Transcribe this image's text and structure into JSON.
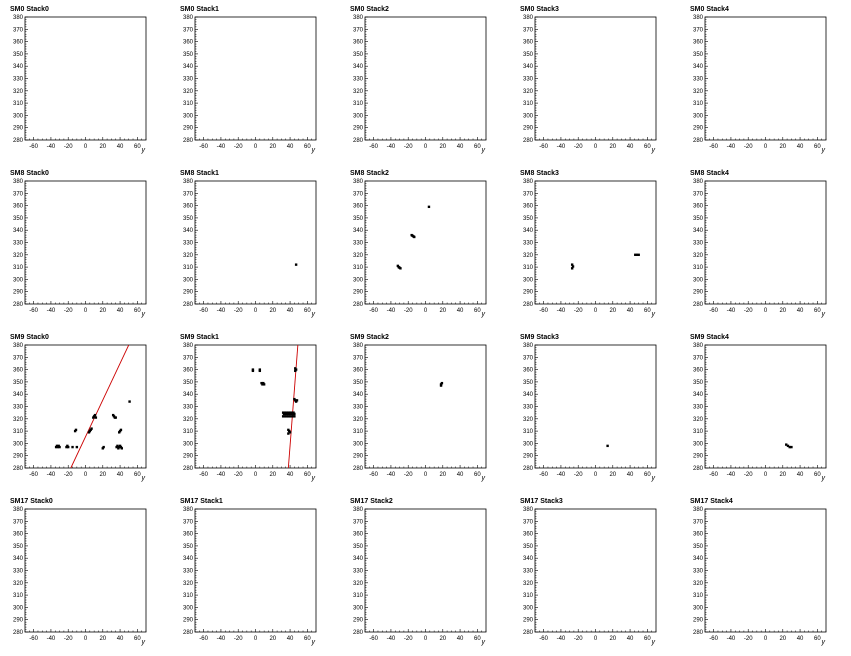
{
  "chart_data": [
    {
      "type": "scatter",
      "title": "SM0 Stack0",
      "xlabel": "y",
      "ylabel": "",
      "xlim": [
        -70,
        70
      ],
      "ylim": [
        280,
        380
      ],
      "xticks": [
        -60,
        -40,
        -20,
        0,
        20,
        40,
        60
      ],
      "yticks": [
        280,
        290,
        300,
        310,
        320,
        330,
        340,
        350,
        360,
        370,
        380
      ],
      "points": [],
      "lines": []
    },
    {
      "type": "scatter",
      "title": "SM0 Stack1",
      "xlabel": "y",
      "ylabel": "",
      "xlim": [
        -70,
        70
      ],
      "ylim": [
        280,
        380
      ],
      "xticks": [
        -60,
        -40,
        -20,
        0,
        20,
        40,
        60
      ],
      "yticks": [
        280,
        290,
        300,
        310,
        320,
        330,
        340,
        350,
        360,
        370,
        380
      ],
      "points": [],
      "lines": []
    },
    {
      "type": "scatter",
      "title": "SM0 Stack2",
      "xlabel": "y",
      "ylabel": "",
      "xlim": [
        -70,
        70
      ],
      "ylim": [
        280,
        380
      ],
      "xticks": [
        -60,
        -40,
        -20,
        0,
        20,
        40,
        60
      ],
      "yticks": [
        280,
        290,
        300,
        310,
        320,
        330,
        340,
        350,
        360,
        370,
        380
      ],
      "points": [],
      "lines": []
    },
    {
      "type": "scatter",
      "title": "SM0 Stack3",
      "xlabel": "y",
      "ylabel": "",
      "xlim": [
        -70,
        70
      ],
      "ylim": [
        280,
        380
      ],
      "xticks": [
        -60,
        -40,
        -20,
        0,
        20,
        40,
        60
      ],
      "yticks": [
        280,
        290,
        300,
        310,
        320,
        330,
        340,
        350,
        360,
        370,
        380
      ],
      "points": [],
      "lines": []
    },
    {
      "type": "scatter",
      "title": "SM0 Stack4",
      "xlabel": "y",
      "ylabel": "",
      "xlim": [
        -70,
        70
      ],
      "ylim": [
        280,
        380
      ],
      "xticks": [
        -60,
        -40,
        -20,
        0,
        20,
        40,
        60
      ],
      "yticks": [
        280,
        290,
        300,
        310,
        320,
        330,
        340,
        350,
        360,
        370,
        380
      ],
      "points": [],
      "lines": []
    },
    {
      "type": "scatter",
      "title": "SM8 Stack0",
      "xlabel": "y",
      "ylabel": "",
      "xlim": [
        -70,
        70
      ],
      "ylim": [
        280,
        380
      ],
      "xticks": [
        -60,
        -40,
        -20,
        0,
        20,
        40,
        60
      ],
      "yticks": [
        280,
        290,
        300,
        310,
        320,
        330,
        340,
        350,
        360,
        370,
        380
      ],
      "points": [],
      "lines": []
    },
    {
      "type": "scatter",
      "title": "SM8 Stack1",
      "xlabel": "y",
      "ylabel": "",
      "xlim": [
        -70,
        70
      ],
      "ylim": [
        280,
        380
      ],
      "xticks": [
        -60,
        -40,
        -20,
        0,
        20,
        40,
        60
      ],
      "yticks": [
        280,
        290,
        300,
        310,
        320,
        330,
        340,
        350,
        360,
        370,
        380
      ],
      "points": [
        [
          47,
          312
        ]
      ],
      "lines": []
    },
    {
      "type": "scatter",
      "title": "SM8 Stack2",
      "xlabel": "y",
      "ylabel": "",
      "xlim": [
        -70,
        70
      ],
      "ylim": [
        280,
        380
      ],
      "xticks": [
        -60,
        -40,
        -20,
        0,
        20,
        40,
        60
      ],
      "yticks": [
        280,
        290,
        300,
        310,
        320,
        330,
        340,
        350,
        360,
        370,
        380
      ],
      "points": [
        [
          4,
          359
        ],
        [
          -16,
          336
        ],
        [
          -15,
          335.5
        ],
        [
          -14,
          335
        ],
        [
          -13,
          334.5
        ],
        [
          -32,
          311
        ],
        [
          -31,
          310
        ],
        [
          -30,
          309.5
        ],
        [
          -29,
          309
        ]
      ],
      "lines": []
    },
    {
      "type": "scatter",
      "title": "SM8 Stack3",
      "xlabel": "y",
      "ylabel": "",
      "xlim": [
        -70,
        70
      ],
      "ylim": [
        280,
        380
      ],
      "xticks": [
        -60,
        -40,
        -20,
        0,
        20,
        40,
        60
      ],
      "yticks": [
        280,
        290,
        300,
        310,
        320,
        330,
        340,
        350,
        360,
        370,
        380
      ],
      "points": [
        [
          -27,
          312
        ],
        [
          -26,
          310.5
        ],
        [
          -27,
          309
        ],
        [
          46,
          320
        ],
        [
          48,
          320
        ],
        [
          50,
          320
        ]
      ],
      "lines": []
    },
    {
      "type": "scatter",
      "title": "SM8 Stack4",
      "xlabel": "y",
      "ylabel": "",
      "xlim": [
        -70,
        70
      ],
      "ylim": [
        280,
        380
      ],
      "xticks": [
        -60,
        -40,
        -20,
        0,
        20,
        40,
        60
      ],
      "yticks": [
        280,
        290,
        300,
        310,
        320,
        330,
        340,
        350,
        360,
        370,
        380
      ],
      "points": [],
      "lines": []
    },
    {
      "type": "scatter",
      "title": "SM9 Stack0",
      "xlabel": "y",
      "ylabel": "",
      "xlim": [
        -70,
        70
      ],
      "ylim": [
        280,
        380
      ],
      "xticks": [
        -60,
        -40,
        -20,
        0,
        20,
        40,
        60
      ],
      "yticks": [
        280,
        290,
        300,
        310,
        320,
        330,
        340,
        350,
        360,
        370,
        380
      ],
      "points": [
        [
          -34,
          297
        ],
        [
          -32,
          297
        ],
        [
          -30,
          297
        ],
        [
          -33,
          298
        ],
        [
          -31,
          298
        ],
        [
          -22,
          297
        ],
        [
          -20,
          297
        ],
        [
          -21,
          298
        ],
        [
          -15,
          297
        ],
        [
          -10,
          297
        ],
        [
          -12,
          310
        ],
        [
          -11,
          311
        ],
        [
          4,
          309
        ],
        [
          5,
          310
        ],
        [
          6,
          311
        ],
        [
          7,
          312
        ],
        [
          9,
          321
        ],
        [
          10,
          322
        ],
        [
          11,
          323
        ],
        [
          12,
          321
        ],
        [
          20,
          296
        ],
        [
          21,
          297
        ],
        [
          32,
          323
        ],
        [
          33,
          322
        ],
        [
          34,
          321
        ],
        [
          35,
          321
        ],
        [
          36,
          297
        ],
        [
          37,
          298
        ],
        [
          38,
          296
        ],
        [
          39,
          297
        ],
        [
          40,
          298
        ],
        [
          41,
          297
        ],
        [
          42,
          296
        ],
        [
          39,
          309
        ],
        [
          40,
          310
        ],
        [
          41,
          311
        ],
        [
          51,
          334
        ]
      ],
      "lines": [
        [
          [
            -17,
            280
          ],
          [
            50,
            380
          ]
        ]
      ]
    },
    {
      "type": "scatter",
      "title": "SM9 Stack1",
      "xlabel": "y",
      "ylabel": "",
      "xlim": [
        -70,
        70
      ],
      "ylim": [
        280,
        380
      ],
      "xticks": [
        -60,
        -40,
        -20,
        0,
        20,
        40,
        60
      ],
      "yticks": [
        280,
        290,
        300,
        310,
        320,
        330,
        340,
        350,
        360,
        370,
        380
      ],
      "points": [
        [
          -3,
          360
        ],
        [
          -3,
          359
        ],
        [
          5,
          360
        ],
        [
          5,
          359
        ],
        [
          7,
          349
        ],
        [
          8,
          348
        ],
        [
          9,
          349
        ],
        [
          10,
          348
        ],
        [
          32,
          325
        ],
        [
          33,
          324
        ],
        [
          34,
          325
        ],
        [
          35,
          324
        ],
        [
          36,
          325
        ],
        [
          37,
          324
        ],
        [
          38,
          325
        ],
        [
          39,
          324
        ],
        [
          40,
          325
        ],
        [
          41,
          324
        ],
        [
          42,
          325
        ],
        [
          43,
          324
        ],
        [
          44,
          325
        ],
        [
          45,
          324
        ],
        [
          32,
          322
        ],
        [
          34,
          322
        ],
        [
          36,
          322
        ],
        [
          38,
          322
        ],
        [
          40,
          322
        ],
        [
          42,
          322
        ],
        [
          44,
          322
        ],
        [
          45,
          322
        ],
        [
          38,
          311
        ],
        [
          39,
          310
        ],
        [
          40,
          309
        ],
        [
          38,
          308
        ],
        [
          45,
          336
        ],
        [
          46,
          335
        ],
        [
          47,
          334
        ],
        [
          48,
          335
        ],
        [
          46,
          359
        ],
        [
          46,
          361
        ],
        [
          47,
          360
        ]
      ],
      "lines": [
        [
          [
            38,
            280
          ],
          [
            49,
            380
          ]
        ]
      ]
    },
    {
      "type": "scatter",
      "title": "SM9 Stack2",
      "xlabel": "y",
      "ylabel": "",
      "xlim": [
        -70,
        70
      ],
      "ylim": [
        280,
        380
      ],
      "xticks": [
        -60,
        -40,
        -20,
        0,
        20,
        40,
        60
      ],
      "yticks": [
        280,
        290,
        300,
        310,
        320,
        330,
        340,
        350,
        360,
        370,
        380
      ],
      "points": [
        [
          18,
          348
        ],
        [
          19,
          349
        ],
        [
          18,
          347
        ]
      ],
      "lines": []
    },
    {
      "type": "scatter",
      "title": "SM9 Stack3",
      "xlabel": "y",
      "ylabel": "",
      "xlim": [
        -70,
        70
      ],
      "ylim": [
        280,
        380
      ],
      "xticks": [
        -60,
        -40,
        -20,
        0,
        20,
        40,
        60
      ],
      "yticks": [
        280,
        290,
        300,
        310,
        320,
        330,
        340,
        350,
        360,
        370,
        380
      ],
      "points": [
        [
          14,
          298
        ]
      ],
      "lines": []
    },
    {
      "type": "scatter",
      "title": "SM9 Stack4",
      "xlabel": "y",
      "ylabel": "",
      "xlim": [
        -70,
        70
      ],
      "ylim": [
        280,
        380
      ],
      "xticks": [
        -60,
        -40,
        -20,
        0,
        20,
        40,
        60
      ],
      "yticks": [
        280,
        290,
        300,
        310,
        320,
        330,
        340,
        350,
        360,
        370,
        380
      ],
      "points": [
        [
          24,
          299
        ],
        [
          26,
          298
        ],
        [
          28,
          297
        ],
        [
          30,
          297
        ]
      ],
      "lines": []
    },
    {
      "type": "scatter",
      "title": "SM17 Stack0",
      "xlabel": "y",
      "ylabel": "",
      "xlim": [
        -70,
        70
      ],
      "ylim": [
        280,
        380
      ],
      "xticks": [
        -60,
        -40,
        -20,
        0,
        20,
        40,
        60
      ],
      "yticks": [
        280,
        290,
        300,
        310,
        320,
        330,
        340,
        350,
        360,
        370,
        380
      ],
      "points": [],
      "lines": []
    },
    {
      "type": "scatter",
      "title": "SM17 Stack1",
      "xlabel": "y",
      "ylabel": "",
      "xlim": [
        -70,
        70
      ],
      "ylim": [
        280,
        380
      ],
      "xticks": [
        -60,
        -40,
        -20,
        0,
        20,
        40,
        60
      ],
      "yticks": [
        280,
        290,
        300,
        310,
        320,
        330,
        340,
        350,
        360,
        370,
        380
      ],
      "points": [],
      "lines": []
    },
    {
      "type": "scatter",
      "title": "SM17 Stack2",
      "xlabel": "y",
      "ylabel": "",
      "xlim": [
        -70,
        70
      ],
      "ylim": [
        280,
        380
      ],
      "xticks": [
        -60,
        -40,
        -20,
        0,
        20,
        40,
        60
      ],
      "yticks": [
        280,
        290,
        300,
        310,
        320,
        330,
        340,
        350,
        360,
        370,
        380
      ],
      "points": [],
      "lines": []
    },
    {
      "type": "scatter",
      "title": "SM17 Stack3",
      "xlabel": "y",
      "ylabel": "",
      "xlim": [
        -70,
        70
      ],
      "ylim": [
        280,
        380
      ],
      "xticks": [
        -60,
        -40,
        -20,
        0,
        20,
        40,
        60
      ],
      "yticks": [
        280,
        290,
        300,
        310,
        320,
        330,
        340,
        350,
        360,
        370,
        380
      ],
      "points": [],
      "lines": []
    },
    {
      "type": "scatter",
      "title": "SM17 Stack4",
      "xlabel": "y",
      "ylabel": "",
      "xlim": [
        -70,
        70
      ],
      "ylim": [
        280,
        380
      ],
      "xticks": [
        -60,
        -40,
        -20,
        0,
        20,
        40,
        60
      ],
      "yticks": [
        280,
        290,
        300,
        310,
        320,
        330,
        340,
        350,
        360,
        370,
        380
      ],
      "points": [],
      "lines": []
    }
  ],
  "colors": {
    "points": "#000000",
    "fit_line": "#cc0000",
    "axis": "#000000"
  }
}
